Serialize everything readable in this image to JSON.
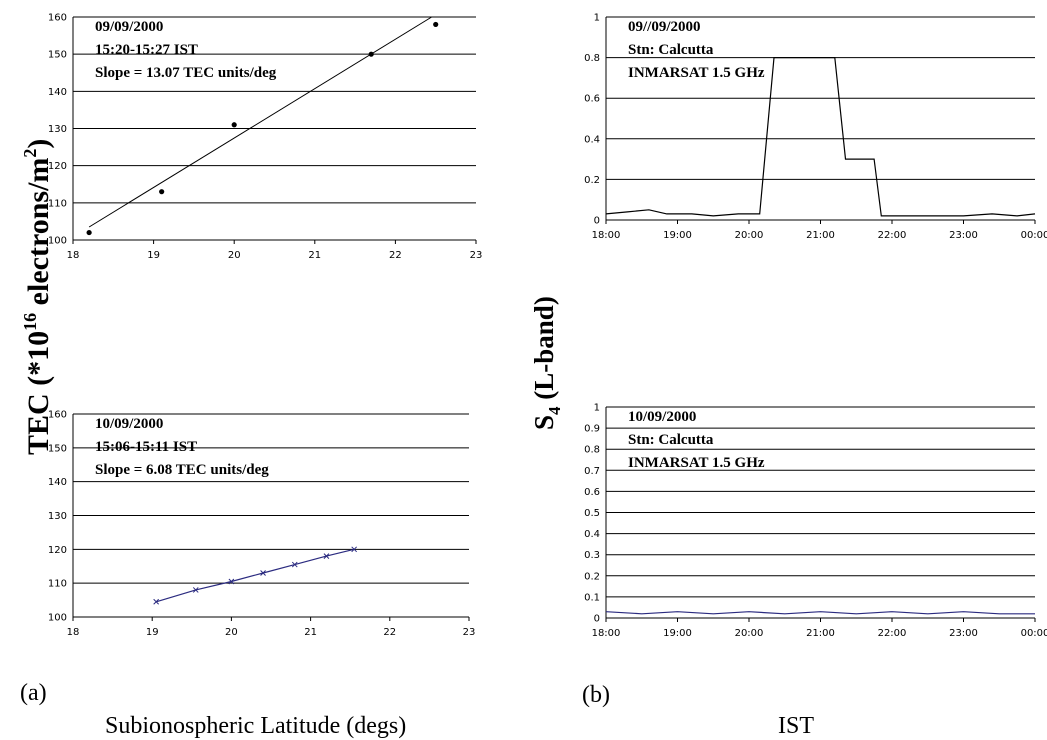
{
  "figure": {
    "shared_ylabel_left": {
      "base": "TEC (*10",
      "sup1": "16",
      "mid": " electrons/m",
      "sup2": "2",
      "end": ")"
    },
    "shared_ylabel_right": {
      "base": "S",
      "sub": "4",
      "end": " (L-band)"
    },
    "panel_a_label": "(a)",
    "panel_b_label": "(b)",
    "xlabel_left": "Subionospheric Latitude (degs)",
    "xlabel_right": "IST"
  },
  "chart_data": [
    {
      "id": "tec_top",
      "type": "scatter",
      "annotations": [
        "09/09/2000",
        "15:20-15:27 IST",
        "Slope = 13.07 TEC units/deg"
      ],
      "xlim": [
        18,
        23
      ],
      "ylim": [
        100,
        160
      ],
      "xticks": [
        18,
        19,
        20,
        21,
        22,
        23
      ],
      "yticks": [
        100,
        110,
        120,
        130,
        140,
        150,
        160
      ],
      "grid": "horizontal",
      "points": [
        {
          "x": 18.2,
          "y": 102
        },
        {
          "x": 19.1,
          "y": 113
        },
        {
          "x": 20.0,
          "y": 131
        },
        {
          "x": 21.7,
          "y": 150
        },
        {
          "x": 22.5,
          "y": 158
        }
      ],
      "fit_line": [
        {
          "x": 18.2,
          "y": 103.5
        },
        {
          "x": 22.45,
          "y": 160
        }
      ]
    },
    {
      "id": "tec_bottom",
      "type": "line",
      "annotations": [
        "10/09/2000",
        "15:06-15:11 IST",
        "Slope = 6.08 TEC units/deg"
      ],
      "xlim": [
        18,
        23
      ],
      "ylim": [
        100,
        160
      ],
      "xticks": [
        18,
        19,
        20,
        21,
        22,
        23
      ],
      "yticks": [
        100,
        110,
        120,
        130,
        140,
        150,
        160
      ],
      "grid": "horizontal",
      "points": [
        {
          "x": 19.05,
          "y": 104.5
        },
        {
          "x": 19.55,
          "y": 108
        },
        {
          "x": 20.0,
          "y": 110.5
        },
        {
          "x": 20.4,
          "y": 113
        },
        {
          "x": 20.8,
          "y": 115.5
        },
        {
          "x": 21.2,
          "y": 118
        },
        {
          "x": 21.55,
          "y": 120
        }
      ],
      "line_color": "#2b2b80"
    },
    {
      "id": "s4_top",
      "type": "line",
      "annotations": [
        "09//09/2000",
        "Stn: Calcutta",
        "INMARSAT 1.5 GHz"
      ],
      "xlim": [
        18,
        24
      ],
      "ylim": [
        0,
        1
      ],
      "xtick_values": [
        18,
        19,
        20,
        21,
        22,
        23,
        24
      ],
      "xtick_labels": [
        "18:00",
        "19:00",
        "20:00",
        "21:00",
        "22:00",
        "23:00",
        "00:00"
      ],
      "ytick_values": [
        0,
        0.2,
        0.4,
        0.6,
        0.8,
        1
      ],
      "ytick_labels": [
        "0",
        "0.2",
        "0.4",
        "0.6",
        "0.8",
        "1"
      ],
      "grid": "horizontal",
      "points": [
        {
          "x": 18.0,
          "y": 0.03
        },
        {
          "x": 18.3,
          "y": 0.04
        },
        {
          "x": 18.6,
          "y": 0.05
        },
        {
          "x": 18.85,
          "y": 0.03
        },
        {
          "x": 19.2,
          "y": 0.03
        },
        {
          "x": 19.5,
          "y": 0.02
        },
        {
          "x": 19.85,
          "y": 0.03
        },
        {
          "x": 20.15,
          "y": 0.03
        },
        {
          "x": 20.35,
          "y": 0.8
        },
        {
          "x": 21.2,
          "y": 0.8
        },
        {
          "x": 21.35,
          "y": 0.3
        },
        {
          "x": 21.75,
          "y": 0.3
        },
        {
          "x": 21.85,
          "y": 0.02
        },
        {
          "x": 22.5,
          "y": 0.02
        },
        {
          "x": 23.0,
          "y": 0.02
        },
        {
          "x": 23.4,
          "y": 0.03
        },
        {
          "x": 23.75,
          "y": 0.02
        },
        {
          "x": 24.0,
          "y": 0.03
        }
      ],
      "line_color": "#000000"
    },
    {
      "id": "s4_bottom",
      "type": "line",
      "annotations": [
        "10/09/2000",
        "Stn: Calcutta",
        "INMARSAT 1.5 GHz"
      ],
      "xlim": [
        18,
        24
      ],
      "ylim": [
        0,
        1
      ],
      "xtick_values": [
        18,
        19,
        20,
        21,
        22,
        23,
        24
      ],
      "xtick_labels": [
        "18:00",
        "19:00",
        "20:00",
        "21:00",
        "22:00",
        "23:00",
        "00:00"
      ],
      "ytick_values": [
        0,
        0.1,
        0.2,
        0.3,
        0.4,
        0.5,
        0.6,
        0.7,
        0.8,
        0.9,
        1
      ],
      "ytick_labels": [
        "0",
        "0.1",
        "0.2",
        "0.3",
        "0.4",
        "0.5",
        "0.6",
        "0.7",
        "0.8",
        "0.9",
        "1"
      ],
      "grid": "horizontal",
      "points": [
        {
          "x": 18.0,
          "y": 0.03
        },
        {
          "x": 18.5,
          "y": 0.02
        },
        {
          "x": 19.0,
          "y": 0.03
        },
        {
          "x": 19.5,
          "y": 0.02
        },
        {
          "x": 20.0,
          "y": 0.03
        },
        {
          "x": 20.5,
          "y": 0.02
        },
        {
          "x": 21.0,
          "y": 0.03
        },
        {
          "x": 21.5,
          "y": 0.02
        },
        {
          "x": 22.0,
          "y": 0.03
        },
        {
          "x": 22.5,
          "y": 0.02
        },
        {
          "x": 23.0,
          "y": 0.03
        },
        {
          "x": 23.5,
          "y": 0.02
        },
        {
          "x": 24.0,
          "y": 0.02
        }
      ],
      "line_color": "#2b2b80"
    }
  ]
}
